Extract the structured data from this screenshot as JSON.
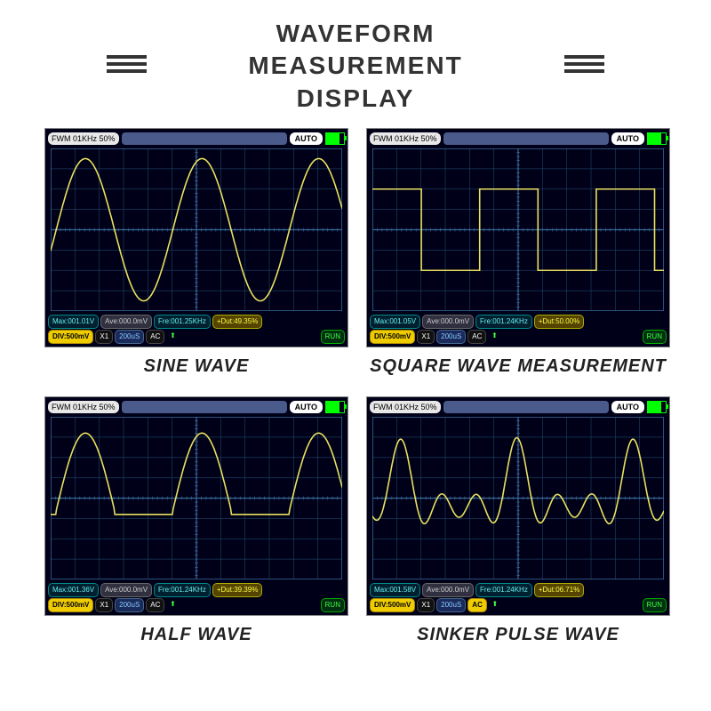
{
  "title_line1": "WAVEFORM",
  "title_line2": "MEASUREMENT",
  "title_line3": "DISPLAY",
  "colors": {
    "scope_bg": "#000018",
    "grid": "#1a3a5a",
    "center_axis": "#3a6a9a",
    "trace": "#e8e060",
    "info_cyan": "#6ee",
    "info_yellow": "#ff4",
    "battery": "#0f0"
  },
  "grid_cfg": {
    "cols": 12,
    "rows": 8,
    "trace_width": 1.6
  },
  "common": {
    "fwm": "FWM  01KHz  50%",
    "auto": "AUTO",
    "battery_pct": 75,
    "div_label": "DIV:500mV",
    "x1": "X1",
    "timebase": "200uS",
    "coupling": "AC",
    "run": "RUN",
    "ave": "Ave:000.0mV"
  },
  "panels": [
    {
      "caption": "SINE WAVE",
      "wave": "sine",
      "max": "Max:001.01V",
      "fre": "Fre:001.25KHz",
      "dut": "+Dut:49.35%",
      "ac_highlight": false
    },
    {
      "caption": "SQUARE WAVE MEASUREMENT",
      "wave": "square",
      "max": "Max:001.05V",
      "fre": "Fre:001.24KHz",
      "dut": "+Dut:50.00%",
      "ac_highlight": false
    },
    {
      "caption": "HALF WAVE",
      "wave": "half",
      "max": "Max:001.36V",
      "fre": "Fre:001.24KHz",
      "dut": "+Dut:39.39%",
      "ac_highlight": false
    },
    {
      "caption": "SINKER PULSE WAVE",
      "wave": "sinc",
      "max": "Max:001.58V",
      "fre": "Fre:001.24KHz",
      "dut": "+Dut:06.71%",
      "ac_highlight": true
    }
  ]
}
